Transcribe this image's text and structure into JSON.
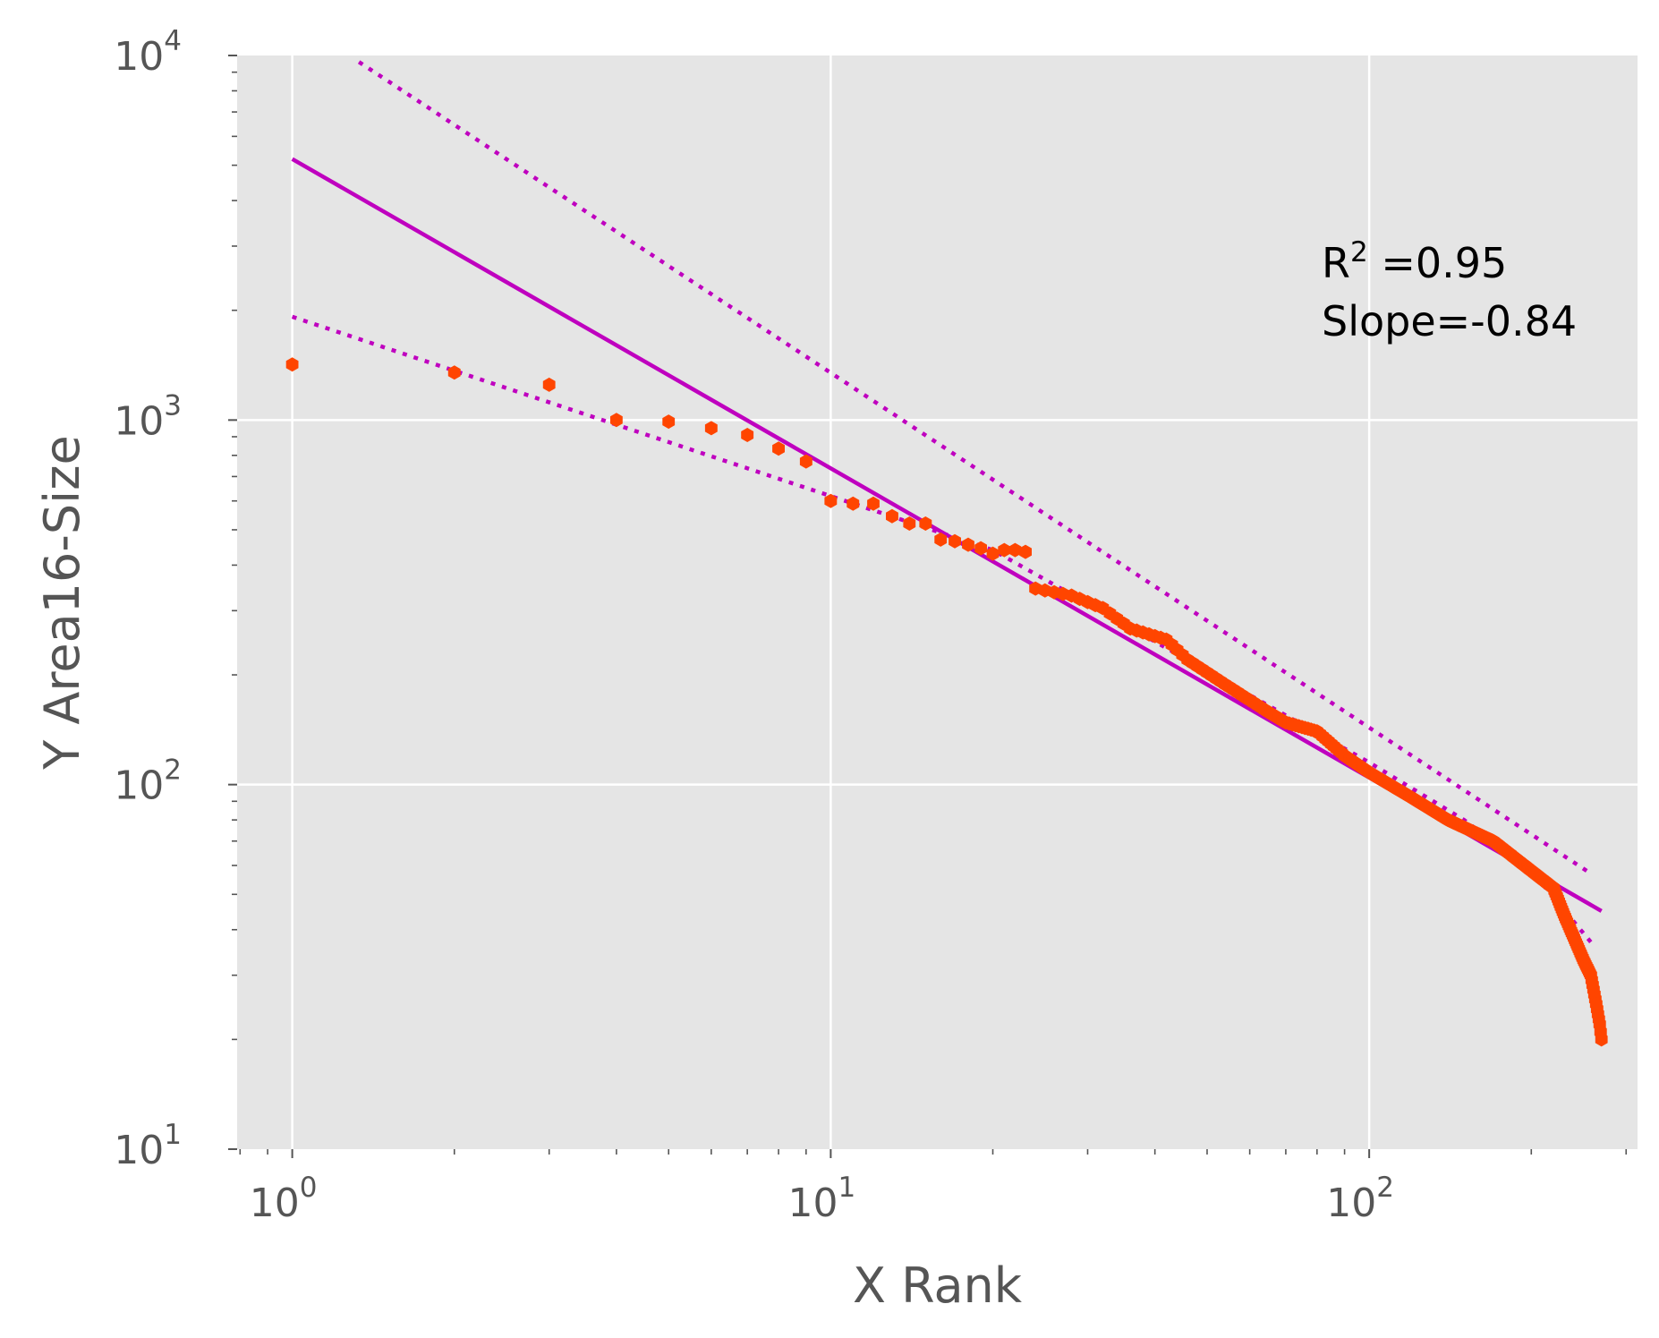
{
  "chart_data": {
    "type": "scatter",
    "xlabel": "X Rank",
    "ylabel": "Y Area16-Size",
    "x_scale": "log",
    "y_scale": "log",
    "xlim": [
      0.79,
      315
    ],
    "ylim": [
      10,
      10000
    ],
    "grid": true,
    "background": "#e5e5e5",
    "colors": {
      "points": "#ff4500",
      "fit": "#bf00bf",
      "grid": "#ffffff",
      "tick_text": "#555555"
    },
    "x_ticks": [
      {
        "value": 1,
        "base": "10",
        "exp": "0"
      },
      {
        "value": 10,
        "base": "10",
        "exp": "1"
      },
      {
        "value": 100,
        "base": "10",
        "exp": "2"
      }
    ],
    "y_ticks": [
      {
        "value": 10,
        "base": "10",
        "exp": "1"
      },
      {
        "value": 100,
        "base": "10",
        "exp": "2"
      },
      {
        "value": 1000,
        "base": "10",
        "exp": "3"
      },
      {
        "value": 10000,
        "base": "10",
        "exp": "4"
      }
    ],
    "annotation": {
      "r2_prefix": "R",
      "r2_sup": "2",
      "r2_suffix": " =0.95",
      "slope": "Slope=-0.84"
    },
    "points": {
      "x": [
        1,
        2,
        3,
        4,
        5,
        6,
        7,
        8,
        9,
        10,
        11,
        12,
        13,
        14,
        15,
        16,
        17,
        18,
        19,
        20,
        21,
        22,
        23
      ],
      "y": [
        1420,
        1350,
        1250,
        1000,
        990,
        950,
        910,
        835,
        770,
        600,
        590,
        590,
        545,
        520,
        520,
        470,
        465,
        455,
        445,
        430,
        440,
        440,
        435
      ]
    },
    "tail_profile": {
      "x_range": [
        24,
        270
      ],
      "anchors": [
        [
          24,
          345
        ],
        [
          28,
          330
        ],
        [
          32,
          305
        ],
        [
          36,
          268
        ],
        [
          42,
          250
        ],
        [
          46,
          220
        ],
        [
          55,
          185
        ],
        [
          65,
          158
        ],
        [
          70,
          148
        ],
        [
          80,
          140
        ],
        [
          90,
          120
        ],
        [
          100,
          108
        ],
        [
          120,
          92
        ],
        [
          140,
          80
        ],
        [
          170,
          70
        ],
        [
          200,
          58
        ],
        [
          220,
          52
        ],
        [
          230,
          44
        ],
        [
          240,
          38
        ],
        [
          250,
          33
        ],
        [
          258,
          30
        ],
        [
          264,
          25
        ],
        [
          268,
          22
        ],
        [
          270,
          20
        ]
      ]
    },
    "fit_line": {
      "x": [
        1,
        270
      ],
      "y": [
        5200,
        45
      ]
    },
    "upper_dotted": {
      "x": [
        1.33,
        258
      ],
      "y": [
        9600,
        57
      ]
    },
    "lower_dotted_points": {
      "x": [
        1,
        20,
        100,
        150,
        200,
        258
      ],
      "y": [
        1920,
        440,
        115,
        80,
        58,
        37
      ]
    }
  }
}
